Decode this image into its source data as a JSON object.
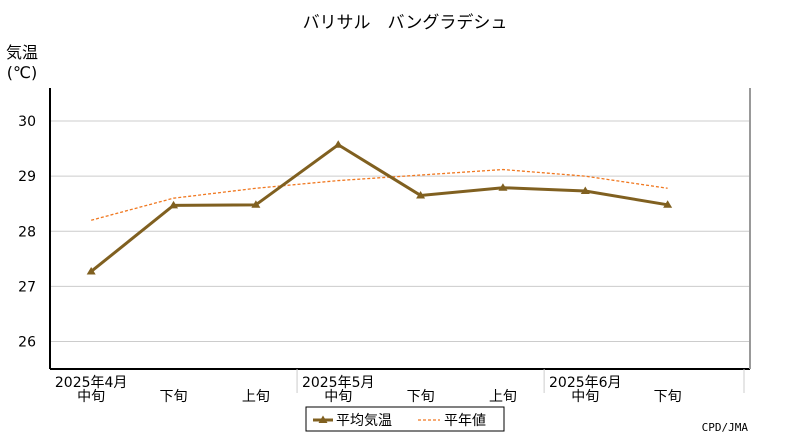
{
  "chart_data": {
    "type": "line",
    "title": "バリサル　バングラデシュ",
    "ylabel_line1": "気温",
    "ylabel_line2": "(℃)",
    "ylim": [
      25.5,
      30.6
    ],
    "yticks": [
      26,
      27,
      28,
      29,
      30
    ],
    "categories": [
      "中旬",
      "下旬",
      "上旬",
      "中旬",
      "下旬",
      "上旬",
      "中旬",
      "下旬"
    ],
    "month_labels": [
      {
        "text": "2025年4月",
        "at": 0
      },
      {
        "text": "2025年5月",
        "at": 3
      },
      {
        "text": "2025年6月",
        "at": 6
      }
    ],
    "series": [
      {
        "name": "平均気温",
        "values": [
          27.27,
          28.47,
          28.48,
          29.57,
          28.65,
          28.79,
          28.73,
          28.48
        ],
        "color": "#806020",
        "style": "solid-triangle-markers"
      },
      {
        "name": "平年値",
        "values": [
          28.2,
          28.6,
          28.78,
          28.92,
          29.02,
          29.12,
          29.0,
          28.78
        ],
        "color": "#f07820",
        "style": "dashed"
      }
    ],
    "grid": true,
    "legend_position": "bottom-center",
    "credit": "CPD/JMA"
  }
}
